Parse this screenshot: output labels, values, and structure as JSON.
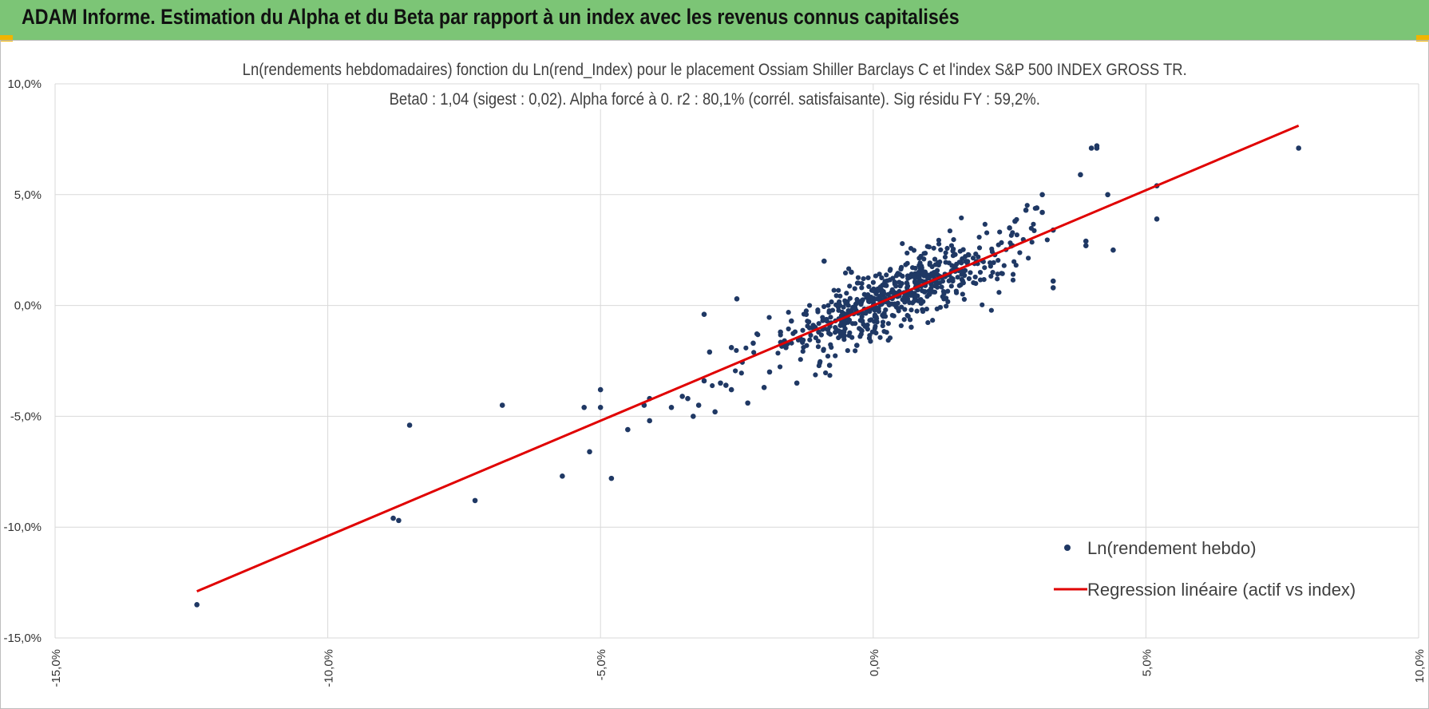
{
  "header": {
    "title": "ADAM Informe. Estimation du Alpha et du Beta par rapport à un index avec les revenus connus capitalisés"
  },
  "colors": {
    "header_bg": "#7cc576",
    "points": "#1f3864",
    "regression": "#e00000",
    "grid": "#d9d9d9"
  },
  "chart_data": {
    "type": "scatter",
    "title_line1": "Ln(rendements hebdomadaires) fonction du Ln(rend_Index) pour le placement Ossiam Shiller Barclays C et l'index S&P 500 INDEX GROSS TR.",
    "title_line2": "Beta0 : 1,04 (sigest : 0,02).  Alpha forcé à 0. r2 : 80,1% (corrél. satisfaisante). Sig résidu FY : 59,2%.",
    "xlim": [
      -0.15,
      0.1
    ],
    "ylim": [
      -0.15,
      0.1
    ],
    "x_ticks": [
      -0.15,
      -0.1,
      -0.05,
      0.0,
      0.05,
      0.1
    ],
    "x_tick_labels": [
      "-15,0%",
      "-10,0%",
      "-5,0%",
      "0,0%",
      "5,0%",
      "10,0%"
    ],
    "y_ticks": [
      0.1,
      0.05,
      0.0,
      -0.05,
      -0.1,
      -0.15
    ],
    "y_tick_labels": [
      "10,0%",
      "5,0%",
      "0,0%",
      "-5,0%",
      "-10,0%",
      "-15,0%"
    ],
    "legend": {
      "position": "bottom-right",
      "series_label": "Ln(rendement hebdo)",
      "line_label": "Regression linéaire (actif vs index)"
    },
    "regression": {
      "beta": 1.04,
      "alpha": 0.0,
      "x_start": -0.124,
      "x_end": 0.078
    },
    "cluster_points": {
      "description_count": 620,
      "seed": 7
    },
    "series": [
      {
        "name": "Ln(rendement hebdo)",
        "points": [
          [
            -0.124,
            -0.135
          ],
          [
            -0.085,
            -0.054
          ],
          [
            -0.088,
            -0.096
          ],
          [
            -0.087,
            -0.097
          ],
          [
            -0.073,
            -0.088
          ],
          [
            -0.068,
            -0.045
          ],
          [
            -0.057,
            -0.077
          ],
          [
            -0.053,
            -0.046
          ],
          [
            -0.05,
            -0.046
          ],
          [
            -0.05,
            -0.038
          ],
          [
            -0.052,
            -0.066
          ],
          [
            -0.048,
            -0.078
          ],
          [
            -0.045,
            -0.056
          ],
          [
            -0.042,
            -0.045
          ],
          [
            -0.041,
            -0.052
          ],
          [
            -0.041,
            -0.042
          ],
          [
            -0.037,
            -0.046
          ],
          [
            -0.035,
            -0.041
          ],
          [
            -0.034,
            -0.042
          ],
          [
            -0.033,
            -0.05
          ],
          [
            -0.032,
            -0.045
          ],
          [
            -0.031,
            -0.034
          ],
          [
            -0.031,
            -0.004
          ],
          [
            -0.03,
            -0.021
          ],
          [
            -0.029,
            -0.048
          ],
          [
            -0.028,
            -0.035
          ],
          [
            -0.027,
            -0.036
          ],
          [
            -0.026,
            -0.019
          ],
          [
            -0.026,
            -0.038
          ],
          [
            -0.025,
            0.003
          ],
          [
            -0.023,
            -0.044
          ],
          [
            -0.022,
            -0.017
          ],
          [
            -0.02,
            -0.037
          ],
          [
            -0.019,
            -0.03
          ],
          [
            -0.017,
            -0.012
          ],
          [
            -0.016,
            -0.019
          ],
          [
            -0.015,
            -0.007
          ],
          [
            -0.014,
            -0.035
          ],
          [
            -0.013,
            -0.016
          ],
          [
            -0.011,
            -0.009
          ],
          [
            -0.01,
            -0.012
          ],
          [
            -0.009,
            0.02
          ],
          [
            -0.008,
            -0.027
          ],
          [
            -0.006,
            -0.009
          ],
          [
            -0.005,
            -0.005
          ],
          [
            -0.004,
            0.015
          ],
          [
            -0.003,
            -0.018
          ],
          [
            -0.002,
            -0.007
          ],
          [
            0.038,
            0.059
          ],
          [
            0.04,
            0.071
          ],
          [
            0.041,
            0.071
          ],
          [
            0.041,
            0.072
          ],
          [
            0.043,
            0.05
          ],
          [
            0.044,
            0.025
          ],
          [
            0.039,
            0.027
          ],
          [
            0.039,
            0.029
          ],
          [
            0.052,
            0.054
          ],
          [
            0.052,
            0.039
          ],
          [
            0.078,
            0.071
          ],
          [
            0.031,
            0.042
          ],
          [
            0.031,
            0.05
          ],
          [
            0.033,
            0.034
          ],
          [
            0.033,
            0.011
          ],
          [
            0.033,
            0.008
          ],
          [
            0.028,
            0.043
          ],
          [
            0.03,
            0.044
          ],
          [
            0.026,
            0.038
          ],
          [
            0.025,
            0.035
          ]
        ]
      }
    ]
  }
}
